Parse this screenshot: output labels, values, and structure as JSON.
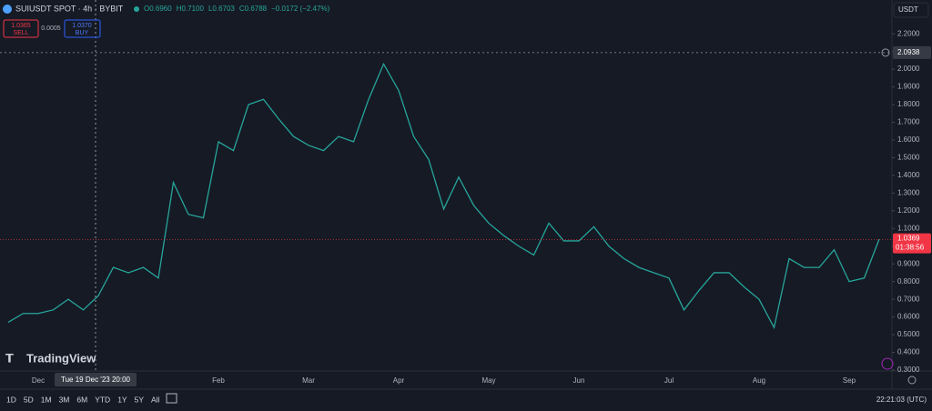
{
  "header": {
    "symbol": "SUIUSDT SPOT · 4h · BYBIT",
    "ohlc": [
      "O0.6960",
      "H0.7100",
      "L0.6703",
      "C0.6788",
      "−0.0172 (−2.47%)"
    ],
    "currency": "USDT"
  },
  "trade": {
    "sell_price": "1.0365",
    "sell": "SELL",
    "spread": "0.0005",
    "buy_price": "1.0370",
    "buy": "BUY"
  },
  "brand": "TradingView",
  "footer": {
    "ranges": [
      "1D",
      "5D",
      "1M",
      "3M",
      "6M",
      "YTD",
      "1Y",
      "5Y",
      "All"
    ],
    "clock": "22:21:03 (UTC)"
  },
  "chart_data": {
    "type": "line",
    "color": "#26a69a",
    "grid": false,
    "categories": [
      null,
      null,
      "Dec",
      null,
      null,
      null,
      null,
      null,
      null,
      null,
      null,
      null,
      null,
      null,
      "Feb",
      null,
      null,
      null,
      null,
      null,
      "Mar",
      null,
      null,
      null,
      null,
      null,
      "Apr",
      null,
      null,
      null,
      null,
      null,
      "May",
      null,
      null,
      null,
      null,
      null,
      "Jun",
      null,
      null,
      null,
      null,
      null,
      "Jul",
      null,
      null,
      null,
      null,
      null,
      "Aug",
      null,
      null,
      null,
      null,
      null,
      "Sep",
      null,
      null
    ],
    "values": [
      0.57,
      0.62,
      0.62,
      0.64,
      0.7,
      0.64,
      0.72,
      0.88,
      0.85,
      0.88,
      0.82,
      1.36,
      1.18,
      1.16,
      1.59,
      1.54,
      1.8,
      1.83,
      1.72,
      1.62,
      1.57,
      1.54,
      1.62,
      1.59,
      1.83,
      2.03,
      1.88,
      1.62,
      1.49,
      1.21,
      1.39,
      1.23,
      1.13,
      1.06,
      1.0,
      0.95,
      1.13,
      1.03,
      1.03,
      1.11,
      1.0,
      0.93,
      0.88,
      0.85,
      0.82,
      0.64,
      0.75,
      0.85,
      0.85,
      0.77,
      0.7,
      0.54,
      0.93,
      0.88,
      0.88,
      0.98,
      0.8,
      0.82,
      1.04
    ],
    "ylim": [
      0.3,
      2.35
    ],
    "yticks": [
      {
        "value": 0.3,
        "label": "0.3000"
      },
      {
        "value": 0.4,
        "label": "0.4000"
      },
      {
        "value": 0.5,
        "label": "0.5000"
      },
      {
        "value": 0.6,
        "label": "0.6000"
      },
      {
        "value": 0.7,
        "label": "0.7000"
      },
      {
        "value": 0.8,
        "label": "0.8000"
      },
      {
        "value": 0.9,
        "label": "0.9000"
      },
      {
        "value": 1.0,
        "label": "1.0000"
      },
      {
        "value": 1.1,
        "label": "1.1000"
      },
      {
        "value": 1.2,
        "label": "1.2000"
      },
      {
        "value": 1.3,
        "label": "1.3000"
      },
      {
        "value": 1.4,
        "label": "1.4000"
      },
      {
        "value": 1.5,
        "label": "1.5000"
      },
      {
        "value": 1.6,
        "label": "1.6000"
      },
      {
        "value": 1.7,
        "label": "1.7000"
      },
      {
        "value": 1.8,
        "label": "1.8000"
      },
      {
        "value": 1.9,
        "label": "1.9000"
      },
      {
        "value": 2.0,
        "label": "2.0000"
      },
      {
        "value": 2.1,
        "label": "2.1000"
      },
      {
        "value": 2.2,
        "label": "2.2000"
      }
    ],
    "last_price": 1.0369,
    "countdown": "01:38:56",
    "crosshair_price": 2.0938,
    "crosshair_time": "Tue 19 Dec '23 20:00"
  }
}
